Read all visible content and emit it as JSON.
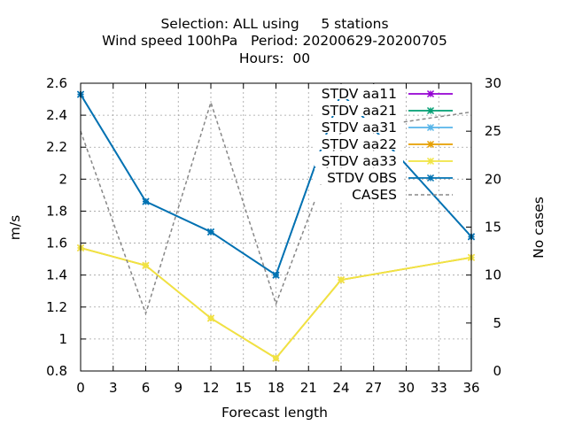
{
  "chart_data": {
    "type": "line",
    "title_lines": [
      "Selection: ALL using     5 stations",
      "Wind speed 100hPa   Period: 20200629-20200705",
      "Hours:  00"
    ],
    "xlabel": "Forecast length",
    "ylabel": "m/s",
    "y2label": "No cases",
    "xlim": [
      0,
      36
    ],
    "ylim": [
      0.8,
      2.6
    ],
    "y2lim": [
      0,
      30
    ],
    "x_ticks": [
      0,
      3,
      6,
      9,
      12,
      15,
      18,
      21,
      24,
      27,
      30,
      33,
      36
    ],
    "y_ticks": [
      "0.8",
      "1",
      "1.2",
      "1.4",
      "1.6",
      "1.8",
      "2",
      "2.2",
      "2.4",
      "2.6"
    ],
    "y2_ticks": [
      "0",
      "5",
      "10",
      "15",
      "20",
      "25",
      "30"
    ],
    "grid": true,
    "legend_position": "top-right",
    "x": [
      0,
      6,
      12,
      18,
      24,
      36
    ],
    "series": [
      {
        "name": "STDV aa11",
        "color": "#9400d3",
        "axis": "y",
        "values": [
          2.53,
          1.86,
          1.67,
          1.4,
          2.54,
          1.64
        ]
      },
      {
        "name": "STDV aa21",
        "color": "#009e73",
        "axis": "y",
        "values": [
          2.53,
          1.86,
          1.67,
          1.4,
          2.54,
          1.64
        ]
      },
      {
        "name": "STDV aa31",
        "color": "#56b4e9",
        "axis": "y",
        "values": [
          2.53,
          1.86,
          1.67,
          1.4,
          2.54,
          1.64
        ]
      },
      {
        "name": "STDV aa22",
        "color": "#e69f00",
        "axis": "y",
        "values": [
          1.57,
          1.46,
          1.13,
          0.88,
          1.37,
          1.51
        ]
      },
      {
        "name": "STDV aa33",
        "color": "#f0e442",
        "axis": "y",
        "values": [
          1.57,
          1.46,
          1.13,
          0.88,
          1.37,
          1.51
        ]
      },
      {
        "name": "STDV OBS",
        "color": "#0072b2",
        "axis": "y",
        "values": [
          2.53,
          1.86,
          1.67,
          1.4,
          2.54,
          1.64
        ]
      },
      {
        "name": "CASES",
        "color": "#888888",
        "axis": "y2",
        "dashed": true,
        "values": [
          25,
          6,
          28,
          7,
          25,
          27
        ]
      }
    ]
  }
}
